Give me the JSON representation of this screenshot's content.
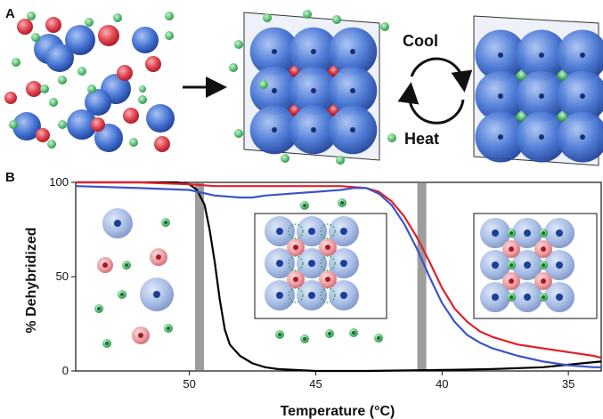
{
  "panels": {
    "a_label": "A",
    "b_label": "B"
  },
  "cycle": {
    "top_label": "Cool",
    "bottom_label": "Heat"
  },
  "colors": {
    "large_particle": "#3b6fd6",
    "small_red_particle": "#d9333f",
    "small_green_particle": "#2fa352",
    "curve_black": "#000000",
    "curve_red": "#e0202a",
    "curve_blue": "#3a55c8",
    "transition_band": "#8c8c8c"
  },
  "chart_data": {
    "type": "line",
    "title": "",
    "xlabel": "Temperature (°C)",
    "ylabel": "% Dehybridized",
    "xlim": [
      54.5,
      33.7
    ],
    "ylim": [
      0,
      100
    ],
    "x_reversed": true,
    "xticks": [
      "50",
      "45",
      "40",
      "35"
    ],
    "yticks": [
      "0",
      "50",
      "100"
    ],
    "transition_markers": [
      49.6,
      40.8
    ],
    "series": [
      {
        "color": "black",
        "x": [
          54.5,
          52,
          50.5,
          50,
          49.7,
          49.4,
          49.2,
          49.0,
          48.8,
          48.6,
          48.4,
          48.0,
          47.5,
          47.0,
          46.5,
          45,
          43,
          40,
          38,
          36,
          34.5,
          33.7
        ],
        "y": [
          100,
          100,
          100,
          99,
          96,
          88,
          75,
          58,
          38,
          22,
          14,
          8,
          4,
          2,
          1,
          0,
          0,
          0.5,
          1,
          2,
          4,
          5
        ]
      },
      {
        "color": "red",
        "x": [
          54.5,
          52,
          50,
          49,
          48,
          47,
          46,
          45,
          44,
          43,
          42.5,
          42,
          41.5,
          41,
          40.5,
          40,
          39.5,
          39,
          38.5,
          38,
          37.5,
          37,
          36,
          35,
          34,
          33.7
        ],
        "y": [
          100,
          100,
          99,
          98,
          98,
          98,
          98,
          98,
          98,
          97,
          95,
          90,
          82,
          71,
          58,
          44,
          33,
          26,
          21,
          18,
          16,
          14,
          12,
          10,
          8,
          7
        ]
      },
      {
        "color": "blue",
        "x": [
          54.5,
          52,
          50,
          49,
          48,
          47.5,
          47,
          46,
          45,
          44,
          43.5,
          43,
          42.5,
          42,
          41.5,
          41,
          40.5,
          40,
          39.5,
          39,
          38.5,
          38,
          37.5,
          37,
          36,
          35,
          34,
          33.7
        ],
        "y": [
          98,
          97,
          96,
          93,
          92,
          92,
          93,
          94,
          95,
          96,
          97,
          97,
          94,
          88,
          78,
          65,
          50,
          36,
          26,
          19,
          15,
          12,
          10,
          8,
          5,
          3,
          2,
          2
        ]
      }
    ]
  }
}
